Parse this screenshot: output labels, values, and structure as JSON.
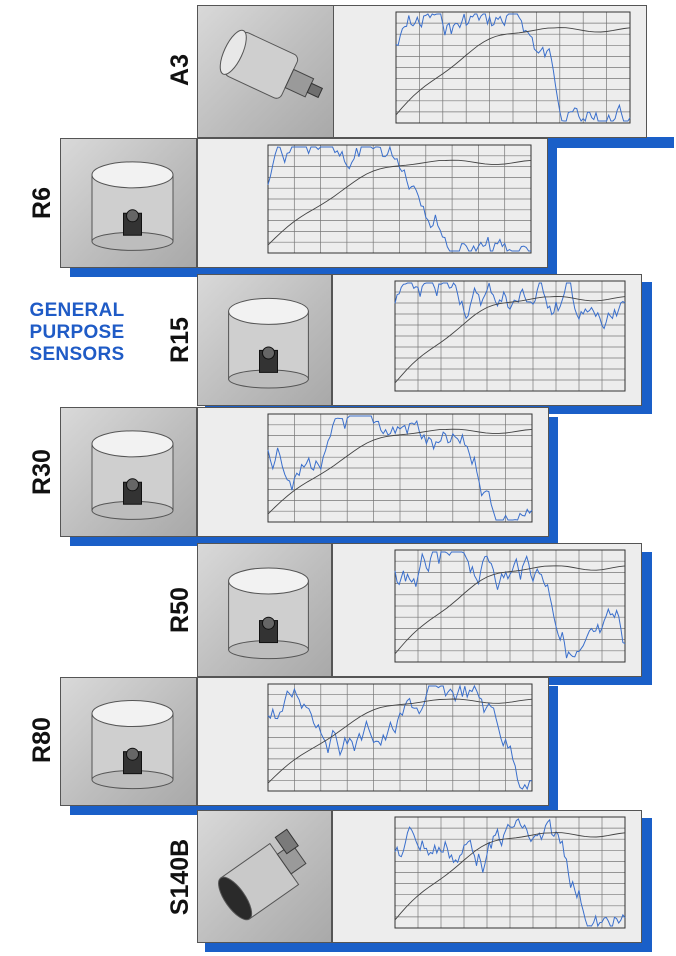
{
  "heading": {
    "line1": "GENERAL",
    "line2": "PURPOSE",
    "line3": "SENSORS"
  },
  "colors": {
    "accent": "#1a5fc8",
    "heading_text": "#1f5bc6",
    "blue_trace": "#3a6fcc",
    "black_trace": "#444444",
    "grid": "#777777"
  },
  "sensors": [
    {
      "model": "A3",
      "photo": "cylindrical-sensor-side-connector"
    },
    {
      "model": "R6",
      "photo": "cylindrical-sensor-top-connector"
    },
    {
      "model": "R15",
      "photo": "cylindrical-sensor-top-connector"
    },
    {
      "model": "R30",
      "photo": "cylindrical-sensor-top-connector"
    },
    {
      "model": "R50",
      "photo": "cylindrical-sensor-top-connector"
    },
    {
      "model": "R80",
      "photo": "cylindrical-sensor-top-connector"
    },
    {
      "model": "S140B",
      "photo": "cylindrical-sensor-angled-connector"
    }
  ]
}
